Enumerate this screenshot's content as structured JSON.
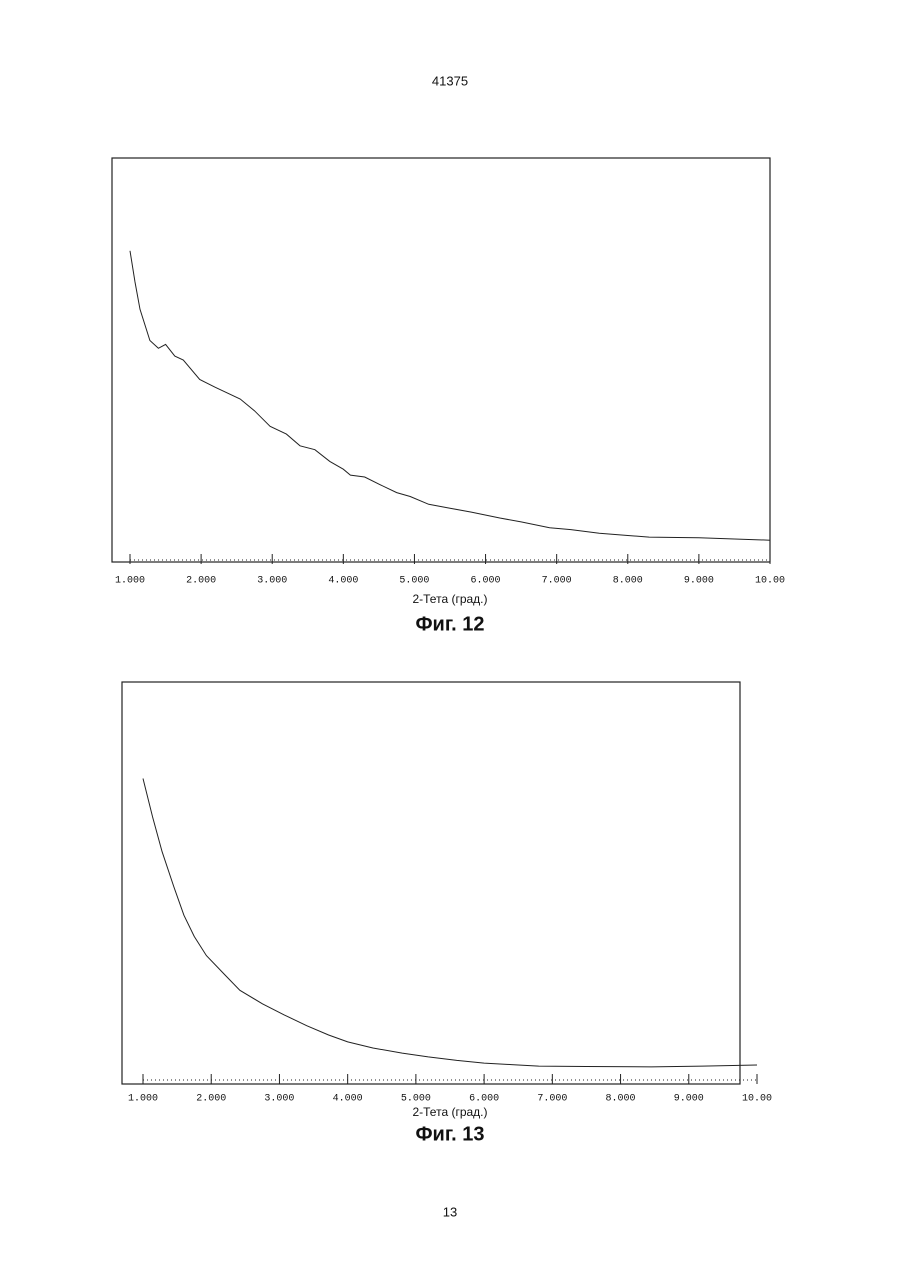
{
  "header": "41375",
  "footer": "13",
  "chart_data": [
    {
      "type": "line",
      "caption": "Фиг. 12",
      "x_label": "2-Тета (град.)",
      "xlim": [
        1,
        10
      ],
      "ylim": [
        0,
        100
      ],
      "xticks": [
        {
          "value": 1,
          "label": "1.000"
        },
        {
          "value": 2,
          "label": "2.000"
        },
        {
          "value": 3,
          "label": "3.000"
        },
        {
          "value": 4,
          "label": "4.000"
        },
        {
          "value": 5,
          "label": "5.000"
        },
        {
          "value": 6,
          "label": "6.000"
        },
        {
          "value": 7,
          "label": "7.000"
        },
        {
          "value": 8,
          "label": "8.000"
        },
        {
          "value": 9,
          "label": "9.000"
        },
        {
          "value": 10,
          "label": "10.00"
        }
      ],
      "series": [
        {
          "color": "#222222",
          "x": [
            1.0,
            1.07,
            1.14,
            1.28,
            1.4,
            1.5,
            1.63,
            1.75,
            1.98,
            2.2,
            2.55,
            2.75,
            2.97,
            3.2,
            3.39,
            3.6,
            3.81,
            4.0,
            4.1,
            4.3,
            4.52,
            4.75,
            4.94,
            5.2,
            5.5,
            5.8,
            6.2,
            6.5,
            6.9,
            7.2,
            7.6,
            8.0,
            8.3,
            8.7,
            9.0,
            9.5,
            10.0
          ],
          "values": [
            78,
            70,
            63,
            55,
            53,
            54,
            51,
            50,
            45,
            43,
            40,
            37,
            33,
            31,
            28,
            27,
            24,
            22,
            20.5,
            20,
            18,
            16,
            15,
            13,
            12,
            11,
            9.5,
            8.5,
            7,
            6.5,
            5.6,
            5,
            4.6,
            4.5,
            4.4,
            4.1,
            3.8
          ]
        }
      ]
    },
    {
      "type": "line",
      "caption": "Фиг. 13",
      "x_label": "2-Тета (град.)",
      "xlim": [
        1,
        10
      ],
      "ylim": [
        0,
        100
      ],
      "xticks": [
        {
          "value": 1,
          "label": "1.000"
        },
        {
          "value": 2,
          "label": "2.000"
        },
        {
          "value": 3,
          "label": "3.000"
        },
        {
          "value": 4,
          "label": "4.000"
        },
        {
          "value": 5,
          "label": "5.000"
        },
        {
          "value": 6,
          "label": "6.000"
        },
        {
          "value": 7,
          "label": "7.000"
        },
        {
          "value": 8,
          "label": "8.000"
        },
        {
          "value": 9,
          "label": "9.000"
        },
        {
          "value": 10,
          "label": "10.00"
        }
      ],
      "series": [
        {
          "color": "#222222",
          "x": [
            1.0,
            1.14,
            1.28,
            1.45,
            1.6,
            1.75,
            1.93,
            2.2,
            2.42,
            2.75,
            3.07,
            3.4,
            3.72,
            4.0,
            4.37,
            4.8,
            5.18,
            5.6,
            6.0,
            6.4,
            6.8,
            7.5,
            8.45,
            9.2,
            10.0
          ],
          "values": [
            77,
            67,
            58,
            49,
            41.5,
            36,
            31,
            26,
            22,
            18.5,
            15.6,
            12.8,
            10.4,
            8.6,
            7,
            5.7,
            4.7,
            3.8,
            3.1,
            2.7,
            2.3,
            2.2,
            2.1,
            2.3,
            2.6
          ]
        }
      ]
    }
  ]
}
